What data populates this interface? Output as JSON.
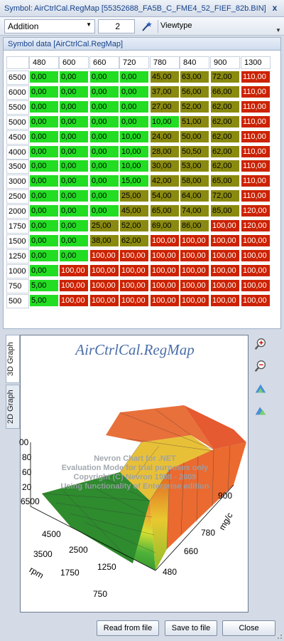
{
  "window": {
    "title": "Symbol: AirCtrlCal.RegMap [55352688_FA5B_C_FME4_52_FIEF_82b.BIN]",
    "close_glyph": "x"
  },
  "toolbar": {
    "operation_value": "Addition",
    "amount_value": "2",
    "viewtype_label": "Viewtype"
  },
  "panel": {
    "title": "Symbol data [AirCtrlCal.RegMap]"
  },
  "table": {
    "columns": [
      "480",
      "600",
      "660",
      "720",
      "780",
      "840",
      "900",
      "1300"
    ],
    "rows": [
      {
        "rpm": "6500",
        "cells": [
          "0,00",
          "0,00",
          "0,00",
          "0,00",
          "45,00",
          "63,00",
          "72,00",
          "110,00"
        ]
      },
      {
        "rpm": "6000",
        "cells": [
          "0,00",
          "0,00",
          "0,00",
          "0,00",
          "37,00",
          "56,00",
          "66,00",
          "110,00"
        ]
      },
      {
        "rpm": "5500",
        "cells": [
          "0,00",
          "0,00",
          "0,00",
          "0,00",
          "27,00",
          "52,00",
          "62,00",
          "110,00"
        ]
      },
      {
        "rpm": "5000",
        "cells": [
          "0,00",
          "0,00",
          "0,00",
          "0,00",
          "10,00",
          "51,00",
          "62,00",
          "110,00"
        ]
      },
      {
        "rpm": "4500",
        "cells": [
          "0,00",
          "0,00",
          "0,00",
          "10,00",
          "24,00",
          "50,00",
          "62,00",
          "110,00"
        ]
      },
      {
        "rpm": "4000",
        "cells": [
          "0,00",
          "0,00",
          "0,00",
          "10,00",
          "28,00",
          "50,50",
          "62,00",
          "110,00"
        ]
      },
      {
        "rpm": "3500",
        "cells": [
          "0,00",
          "0,00",
          "0,00",
          "10,00",
          "30,00",
          "53,00",
          "62,00",
          "110,00"
        ]
      },
      {
        "rpm": "3000",
        "cells": [
          "0,00",
          "0,00",
          "0,00",
          "15,00",
          "42,00",
          "58,00",
          "65,00",
          "110,00"
        ]
      },
      {
        "rpm": "2500",
        "cells": [
          "0,00",
          "0,00",
          "0,00",
          "25,00",
          "54,00",
          "64,00",
          "72,00",
          "110,00"
        ]
      },
      {
        "rpm": "2000",
        "cells": [
          "0,00",
          "0,00",
          "0,00",
          "45,00",
          "65,00",
          "74,00",
          "85,00",
          "120,00"
        ]
      },
      {
        "rpm": "1750",
        "cells": [
          "0,00",
          "0,00",
          "25,00",
          "52,00",
          "69,00",
          "86,00",
          "100,00",
          "120,00"
        ]
      },
      {
        "rpm": "1500",
        "cells": [
          "0,00",
          "0,00",
          "38,00",
          "62,00",
          "100,00",
          "100,00",
          "100,00",
          "100,00"
        ]
      },
      {
        "rpm": "1250",
        "cells": [
          "0,00",
          "0,00",
          "100,00",
          "100,00",
          "100,00",
          "100,00",
          "100,00",
          "100,00"
        ]
      },
      {
        "rpm": "1000",
        "cells": [
          "0,00",
          "100,00",
          "100,00",
          "100,00",
          "100,00",
          "100,00",
          "100,00",
          "100,00"
        ]
      },
      {
        "rpm": "750",
        "cells": [
          "5,00",
          "100,00",
          "100,00",
          "100,00",
          "100,00",
          "100,00",
          "100,00",
          "100,00"
        ]
      },
      {
        "rpm": "500",
        "cells": [
          "5,00",
          "100,00",
          "100,00",
          "100,00",
          "100,00",
          "100,00",
          "100,00",
          "100,00"
        ]
      }
    ]
  },
  "tabs": {
    "graph3d": "3D Graph",
    "graph2d": "2D Graph"
  },
  "graph": {
    "title": "AirCtrlCal.RegMap",
    "watermark": [
      "Nevron Chart for .NET",
      "Evaluation Mode for trial purposes only",
      "Copyright (C) Nevron 1998 - 2009",
      "Using functionality of Enterprise edition"
    ],
    "rpm_ticks": [
      "6500",
      "4500",
      "3500",
      "2500",
      "1750",
      "1250",
      "750"
    ],
    "mgc_ticks": [
      "900",
      "780",
      "660",
      "480"
    ],
    "z_ticks": [
      "20",
      "40",
      "60",
      "80",
      "00"
    ],
    "left_ticks": [
      "00"
    ],
    "rpm_label": "rpm",
    "mgc_label": "mg/c"
  },
  "buttons": {
    "read": "Read from file",
    "save": "Save to file",
    "close": "Close"
  },
  "colors": {
    "green": "#22dd22",
    "olive": "#8a8a10",
    "red": "#cc2200"
  }
}
